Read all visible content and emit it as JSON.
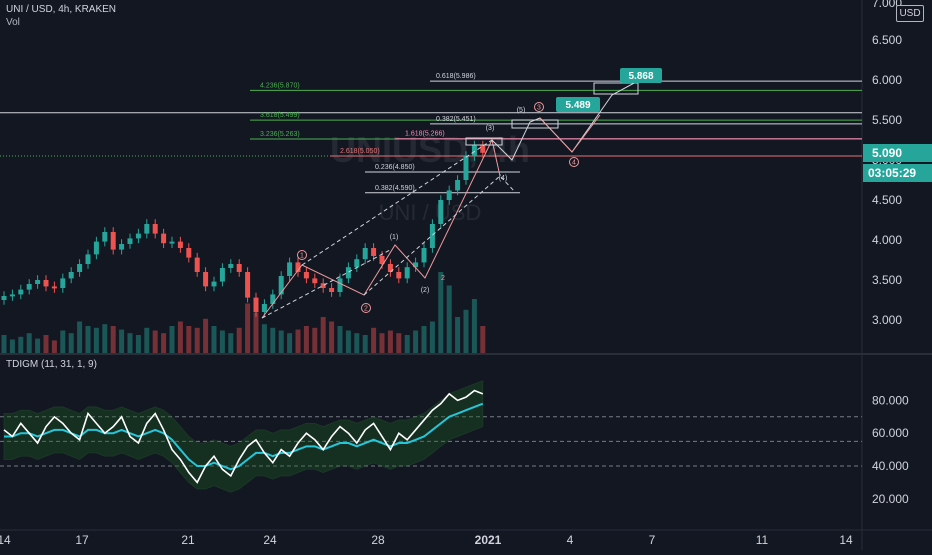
{
  "header": {
    "symbol_line": "UNI / USD, 4h, KRAKEN",
    "volume_label": "Vol",
    "currency_button": "USD",
    "watermark_primary": "UNIUSD, 4h",
    "watermark_secondary": "UNI / USD",
    "top_clip_label": "7.000"
  },
  "chart_data": [
    {
      "type": "line",
      "name": "price-panel",
      "title": "UNI / USD, 4h, KRAKEN",
      "ylim": [
        2.6,
        7.0
      ],
      "y_ticks": [
        "6.500",
        "6.000",
        "5.500",
        "5.000",
        "4.500",
        "4.000",
        "3.500",
        "3.000"
      ],
      "x_ticks": [
        "14",
        "17",
        "21",
        "24",
        "28",
        "2021",
        "4",
        "7",
        "11",
        "14"
      ],
      "current_price": "5.090",
      "countdown": "03:05:29",
      "price_series": [
        3.3,
        3.32,
        3.38,
        3.45,
        3.5,
        3.42,
        3.4,
        3.52,
        3.6,
        3.7,
        3.82,
        3.98,
        4.1,
        3.88,
        3.95,
        4.02,
        4.08,
        4.2,
        4.08,
        3.96,
        3.98,
        3.9,
        3.78,
        3.6,
        3.42,
        3.48,
        3.65,
        3.7,
        3.6,
        3.28,
        3.1,
        3.2,
        3.32,
        3.55,
        3.72,
        3.6,
        3.52,
        3.46,
        3.4,
        3.35,
        3.52,
        3.66,
        3.76,
        3.9,
        3.8,
        3.7,
        3.6,
        3.52,
        3.66,
        3.72,
        3.9,
        4.2,
        4.5,
        4.62,
        4.75,
        5.05,
        5.18,
        5.09
      ],
      "volume_series": [
        0.2,
        0.15,
        0.18,
        0.22,
        0.16,
        0.2,
        0.14,
        0.25,
        0.22,
        0.35,
        0.3,
        0.28,
        0.32,
        0.3,
        0.26,
        0.22,
        0.2,
        0.28,
        0.25,
        0.22,
        0.3,
        0.35,
        0.3,
        0.28,
        0.38,
        0.3,
        0.25,
        0.22,
        0.28,
        0.55,
        0.45,
        0.32,
        0.28,
        0.25,
        0.22,
        0.26,
        0.3,
        0.28,
        0.4,
        0.35,
        0.3,
        0.25,
        0.22,
        0.2,
        0.28,
        0.22,
        0.25,
        0.22,
        0.2,
        0.25,
        0.3,
        0.35,
        0.9,
        0.75,
        0.4,
        0.48,
        0.6,
        0.3
      ],
      "fib_levels": [
        {
          "label": "4.236(5.870)",
          "value": 5.87,
          "color": "#4caf50"
        },
        {
          "label": "0.618(5.986)",
          "value": 5.986,
          "color": "#d1d4dc"
        },
        {
          "label": "3.618(5.499)",
          "value": 5.499,
          "color": "#4caf50"
        },
        {
          "label": "0.382(5.451)",
          "value": 5.451,
          "color": "#d1d4dc"
        },
        {
          "label": "3.236(5.263)",
          "value": 5.263,
          "color": "#4caf50"
        },
        {
          "label": "1.618(5.266)",
          "value": 5.266,
          "color": "#f48fb1"
        },
        {
          "label": "2.618(5.050)",
          "value": 5.05,
          "color": "#e57373"
        },
        {
          "label": "0.236(4.850)",
          "value": 4.85,
          "color": "#d1d4dc"
        },
        {
          "label": "0.382(4.590)",
          "value": 4.59,
          "color": "#d1d4dc"
        }
      ],
      "targets": [
        "5.868",
        "5.489"
      ],
      "wave_labels": [
        "1",
        "2",
        "3",
        "4",
        "(1)",
        "(2)",
        "(3)",
        "(4)",
        "(5)",
        "2"
      ]
    },
    {
      "type": "line",
      "name": "oscillator-panel",
      "title": "TDIGM (11, 31, 1, 9)",
      "ylim": [
        10,
        90
      ],
      "y_ticks": [
        "80.000",
        "60.000",
        "40.000",
        "20.000"
      ],
      "levels": [
        70,
        55,
        40
      ],
      "rsi": [
        62,
        58,
        66,
        60,
        54,
        64,
        70,
        66,
        60,
        56,
        72,
        66,
        60,
        64,
        70,
        58,
        54,
        66,
        72,
        62,
        50,
        44,
        36,
        30,
        40,
        46,
        38,
        34,
        44,
        52,
        56,
        48,
        42,
        50,
        46,
        54,
        60,
        56,
        50,
        58,
        64,
        60,
        54,
        62,
        66,
        58,
        50,
        60,
        56,
        62,
        68,
        74,
        78,
        84,
        80,
        82,
        86,
        84
      ],
      "signal": [
        58,
        58,
        60,
        60,
        58,
        60,
        62,
        62,
        60,
        58,
        62,
        62,
        60,
        60,
        62,
        60,
        58,
        60,
        62,
        60,
        56,
        50,
        44,
        40,
        40,
        42,
        40,
        38,
        40,
        44,
        48,
        48,
        46,
        48,
        48,
        50,
        52,
        52,
        50,
        52,
        54,
        54,
        52,
        54,
        56,
        54,
        52,
        54,
        54,
        56,
        58,
        62,
        66,
        70,
        72,
        74,
        76,
        78
      ]
    }
  ]
}
